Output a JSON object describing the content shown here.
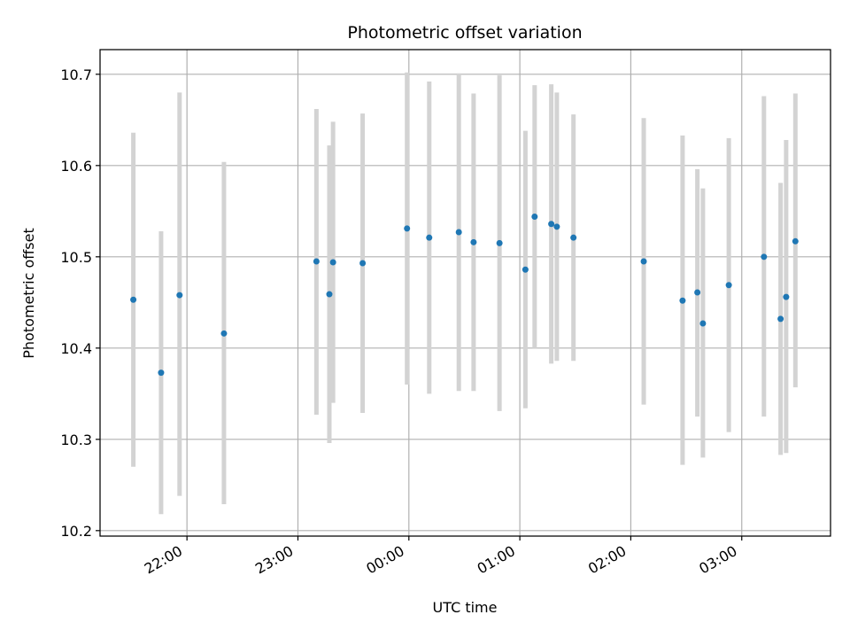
{
  "chart_data": {
    "type": "scatter",
    "title": "Photometric offset variation",
    "xlabel": "UTC time",
    "ylabel": "Photometric offset",
    "xlim": [
      "21:13",
      "03:48"
    ],
    "ylim": [
      10.194,
      10.727
    ],
    "x_ticks": [
      "22:00",
      "23:00",
      "00:00",
      "01:00",
      "02:00",
      "03:00"
    ],
    "y_ticks": [
      "10.2",
      "10.3",
      "10.4",
      "10.5",
      "10.6",
      "10.7"
    ],
    "grid": true,
    "colors": {
      "point": "#1f77b4",
      "errorbar": "#d3d3d3",
      "grid": "#b0b0b0"
    },
    "points": [
      {
        "x": "21:31",
        "y": 10.453,
        "ylow": 10.27,
        "yhigh": 10.636
      },
      {
        "x": "21:46",
        "y": 10.373,
        "ylow": 10.218,
        "yhigh": 10.528
      },
      {
        "x": "21:56",
        "y": 10.458,
        "ylow": 10.238,
        "yhigh": 10.68
      },
      {
        "x": "22:20",
        "y": 10.416,
        "ylow": 10.229,
        "yhigh": 10.604
      },
      {
        "x": "23:10",
        "y": 10.495,
        "ylow": 10.327,
        "yhigh": 10.662
      },
      {
        "x": "23:17",
        "y": 10.459,
        "ylow": 10.296,
        "yhigh": 10.622
      },
      {
        "x": "23:19",
        "y": 10.494,
        "ylow": 10.34,
        "yhigh": 10.648
      },
      {
        "x": "23:35",
        "y": 10.493,
        "ylow": 10.329,
        "yhigh": 10.657
      },
      {
        "x": "23:59",
        "y": 10.531,
        "ylow": 10.36,
        "yhigh": 10.702
      },
      {
        "x": "00:11",
        "y": 10.521,
        "ylow": 10.35,
        "yhigh": 10.692
      },
      {
        "x": "00:27",
        "y": 10.527,
        "ylow": 10.353,
        "yhigh": 10.701
      },
      {
        "x": "00:35",
        "y": 10.516,
        "ylow": 10.353,
        "yhigh": 10.679
      },
      {
        "x": "00:49",
        "y": 10.515,
        "ylow": 10.331,
        "yhigh": 10.699
      },
      {
        "x": "01:03",
        "y": 10.486,
        "ylow": 10.334,
        "yhigh": 10.638
      },
      {
        "x": "01:08",
        "y": 10.544,
        "ylow": 10.4,
        "yhigh": 10.688
      },
      {
        "x": "01:17",
        "y": 10.536,
        "ylow": 10.383,
        "yhigh": 10.689
      },
      {
        "x": "01:20",
        "y": 10.533,
        "ylow": 10.386,
        "yhigh": 10.68
      },
      {
        "x": "01:29",
        "y": 10.521,
        "ylow": 10.386,
        "yhigh": 10.656
      },
      {
        "x": "02:07",
        "y": 10.495,
        "ylow": 10.338,
        "yhigh": 10.652
      },
      {
        "x": "02:28",
        "y": 10.452,
        "ylow": 10.272,
        "yhigh": 10.633
      },
      {
        "x": "02:36",
        "y": 10.461,
        "ylow": 10.325,
        "yhigh": 10.596
      },
      {
        "x": "02:39",
        "y": 10.427,
        "ylow": 10.28,
        "yhigh": 10.575
      },
      {
        "x": "02:53",
        "y": 10.469,
        "ylow": 10.308,
        "yhigh": 10.63
      },
      {
        "x": "03:12",
        "y": 10.5,
        "ylow": 10.325,
        "yhigh": 10.676
      },
      {
        "x": "03:21",
        "y": 10.432,
        "ylow": 10.283,
        "yhigh": 10.581
      },
      {
        "x": "03:24",
        "y": 10.456,
        "ylow": 10.285,
        "yhigh": 10.628
      },
      {
        "x": "03:29",
        "y": 10.517,
        "ylow": 10.357,
        "yhigh": 10.679
      }
    ]
  }
}
